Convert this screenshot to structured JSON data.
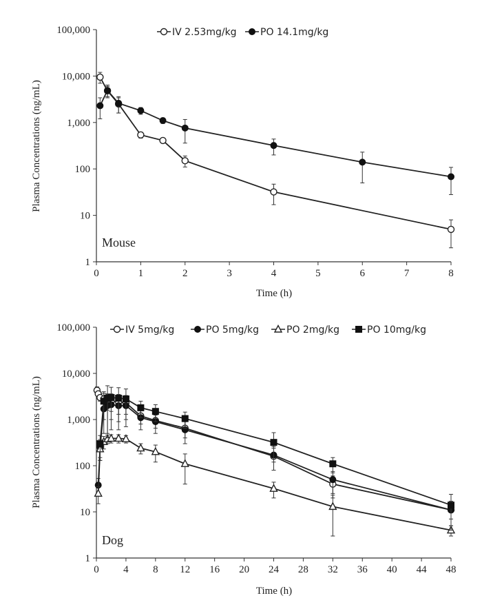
{
  "chart_data": [
    {
      "type": "line",
      "panel_label": "Mouse",
      "xlabel": "Time (h)",
      "ylabel": "Plasma Concentrations (ng/mL)",
      "yscale": "log",
      "xlim": [
        0,
        8
      ],
      "ylim": [
        1,
        100000
      ],
      "xticks": [
        "0",
        "1",
        "2",
        "3",
        "4",
        "5",
        "6",
        "7",
        "8"
      ],
      "yticks": [
        "1",
        "10",
        "100",
        "1,000",
        "10,000",
        "100,000"
      ],
      "legend_position": "top",
      "series": [
        {
          "name": "IV 2.53mg/kg",
          "marker": "circle-open",
          "x": [
            0.083,
            0.25,
            0.5,
            1,
            1.5,
            2,
            4,
            8
          ],
          "y": [
            9500,
            4800,
            2500,
            540,
            410,
            150,
            32,
            5
          ],
          "err": [
            2500,
            1200,
            900,
            80,
            50,
            40,
            15,
            3
          ]
        },
        {
          "name": "PO 14.1mg/kg",
          "marker": "circle-filled",
          "x": [
            0.083,
            0.25,
            0.5,
            1,
            1.5,
            2,
            4,
            6,
            8
          ],
          "y": [
            2300,
            4900,
            2600,
            1800,
            1100,
            760,
            320,
            140,
            68
          ],
          "err": [
            1100,
            1500,
            1000,
            300,
            150,
            400,
            120,
            90,
            40
          ]
        }
      ]
    },
    {
      "type": "line",
      "panel_label": "Dog",
      "xlabel": "Time (h)",
      "ylabel": "Plasma Concentrations (ng/mL)",
      "yscale": "log",
      "xlim": [
        0,
        48
      ],
      "ylim": [
        1,
        100000
      ],
      "xticks": [
        "0",
        "4",
        "8",
        "12",
        "16",
        "20",
        "24",
        "28",
        "32",
        "36",
        "40",
        "44",
        "48"
      ],
      "yticks": [
        "1",
        "10",
        "100",
        "1,000",
        "10,000",
        "100,000"
      ],
      "legend_position": "top",
      "series": [
        {
          "name": "IV 5mg/kg",
          "marker": "circle-open",
          "x": [
            0.083,
            0.25,
            0.5,
            1,
            1.5,
            2,
            3,
            4,
            6,
            8,
            12,
            24,
            32,
            48
          ],
          "y": [
            4300,
            3600,
            3000,
            2800,
            2600,
            2500,
            2400,
            2300,
            1200,
            950,
            650,
            160,
            40,
            11
          ],
          "err": [
            800,
            600,
            500,
            900,
            1000,
            1000,
            1100,
            1000,
            400,
            300,
            250,
            80,
            20,
            4
          ]
        },
        {
          "name": "PO 5mg/kg",
          "marker": "circle-filled",
          "x": [
            0.25,
            0.5,
            1,
            1.5,
            2,
            3,
            4,
            6,
            8,
            12,
            24,
            32,
            48
          ],
          "y": [
            38,
            250,
            1700,
            2000,
            2100,
            2000,
            2000,
            1100,
            900,
            600,
            170,
            50,
            11
          ],
          "err": [
            15,
            120,
            1200,
            1500,
            1500,
            1400,
            1300,
            500,
            400,
            300,
            90,
            25,
            6
          ]
        },
        {
          "name": "PO 2mg/kg",
          "marker": "triangle-open",
          "x": [
            0.25,
            0.5,
            1,
            1.5,
            2,
            3,
            4,
            6,
            8,
            12,
            24,
            32,
            48
          ],
          "y": [
            25,
            230,
            330,
            380,
            390,
            390,
            380,
            240,
            200,
            110,
            32,
            13,
            4
          ],
          "err": [
            10,
            100,
            100,
            80,
            80,
            80,
            70,
            60,
            80,
            70,
            12,
            10,
            1
          ]
        },
        {
          "name": "PO 10mg/kg",
          "marker": "square-filled",
          "x": [
            0.5,
            1,
            1.5,
            2,
            3,
            4,
            6,
            8,
            12,
            24,
            32,
            48
          ],
          "y": [
            300,
            2500,
            2900,
            3000,
            2900,
            2800,
            1800,
            1500,
            1050,
            320,
            110,
            14
          ],
          "err": [
            150,
            1500,
            2500,
            2000,
            2000,
            1800,
            700,
            600,
            400,
            200,
            40,
            10
          ]
        }
      ]
    }
  ]
}
